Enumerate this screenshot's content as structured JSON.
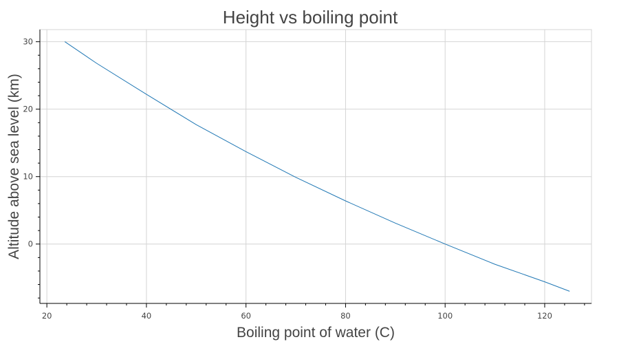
{
  "chart_data": {
    "type": "line",
    "title": "Height vs boiling point",
    "xlabel": "Boiling point of water (C)",
    "ylabel": "Altitude above sea level (km)",
    "xlim": [
      18.6,
      129.4
    ],
    "ylim": [
      -8.8,
      31.8
    ],
    "x_ticks": [
      20,
      40,
      60,
      80,
      100,
      120
    ],
    "y_ticks": [
      0,
      10,
      20,
      30
    ],
    "x_tick_labels": [
      "20",
      "40",
      "60",
      "80",
      "100",
      "120"
    ],
    "y_tick_labels": [
      "0",
      "10",
      "20",
      "30"
    ],
    "grid": true,
    "series": [
      {
        "color": "#1f77b4",
        "x": [
          23.6,
          30,
          40,
          50,
          60,
          70,
          80,
          90,
          100,
          110,
          120,
          125
        ],
        "y": [
          30.0,
          26.8,
          22.2,
          17.7,
          13.7,
          9.9,
          6.4,
          3.1,
          0.0,
          -3.0,
          -5.6,
          -7.0
        ]
      }
    ]
  }
}
